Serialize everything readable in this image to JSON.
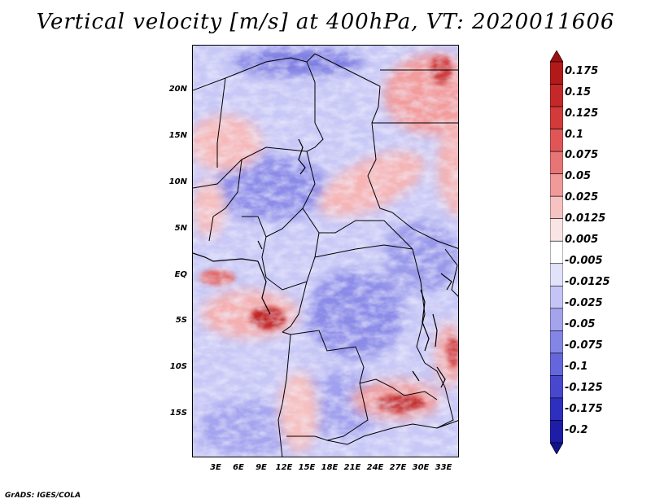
{
  "title": "Vertical velocity [m/s] at 400hPa, VT: 2020011606",
  "credit": "GrADS: IGES/COLA",
  "map": {
    "lat_labels": [
      "20N",
      "15N",
      "10N",
      "5N",
      "EQ",
      "5S",
      "10S",
      "15S"
    ],
    "lon_labels": [
      "3E",
      "6E",
      "9E",
      "12E",
      "15E",
      "18E",
      "21E",
      "24E",
      "27E",
      "30E",
      "33E"
    ],
    "lat_range": [
      -20,
      25
    ],
    "lon_range": [
      0,
      35
    ]
  },
  "colorbar": {
    "labels": [
      "0.175",
      "0.15",
      "0.125",
      "0.1",
      "0.075",
      "0.05",
      "0.025",
      "0.0125",
      "0.005",
      "-0.005",
      "-0.0125",
      "-0.025",
      "-0.05",
      "-0.075",
      "-0.1",
      "-0.125",
      "-0.175",
      "-0.2"
    ],
    "colors": [
      "#9b1010",
      "#b21a1a",
      "#c52828",
      "#d33a3a",
      "#e05656",
      "#e87575",
      "#f09a9a",
      "#f6c2c2",
      "#fbe4e4",
      "#ffffff",
      "#e2e2fb",
      "#c4c4f5",
      "#a3a3ee",
      "#8585e6",
      "#6666dc",
      "#4848cf",
      "#2f2fbf",
      "#1d1da8",
      "#13138a"
    ]
  }
}
